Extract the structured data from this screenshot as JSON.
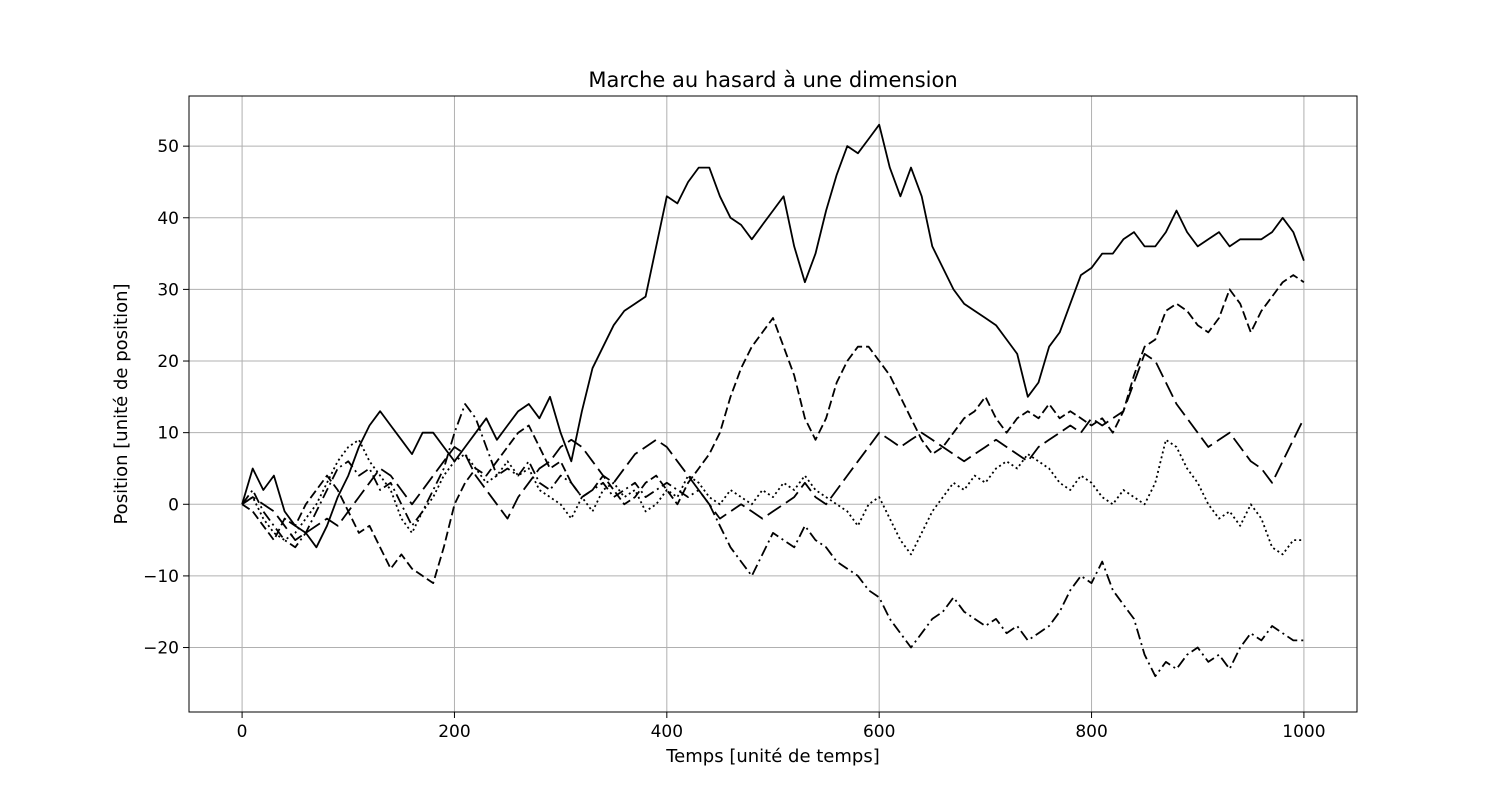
{
  "chart_data": {
    "type": "line",
    "title": "Marche au hasard à une dimension",
    "xlabel": "Temps [unité de temps]",
    "ylabel": "Position [unité de position]",
    "xlim": [
      -50,
      1050
    ],
    "ylim": [
      -29.0,
      57.0
    ],
    "xticks": [
      0,
      200,
      400,
      600,
      800,
      1000
    ],
    "yticks": [
      -20,
      -10,
      0,
      10,
      20,
      30,
      40,
      50
    ],
    "grid": true,
    "line_color": "#000000",
    "grid_color": "#b0b0b0",
    "series": [
      {
        "style": "solid",
        "x": [
          0,
          10,
          20,
          30,
          40,
          50,
          60,
          70,
          80,
          90,
          100,
          110,
          120,
          130,
          140,
          150,
          160,
          170,
          180,
          190,
          200,
          210,
          220,
          230,
          240,
          250,
          260,
          270,
          280,
          290,
          300,
          310,
          320,
          330,
          340,
          350,
          360,
          370,
          380,
          390,
          400,
          410,
          420,
          430,
          440,
          450,
          460,
          470,
          480,
          490,
          500,
          510,
          520,
          530,
          540,
          550,
          560,
          570,
          580,
          590,
          600,
          610,
          620,
          630,
          640,
          650,
          660,
          670,
          680,
          690,
          700,
          710,
          720,
          730,
          740,
          750,
          760,
          770,
          780,
          790,
          800,
          810,
          820,
          830,
          840,
          850,
          860,
          870,
          880,
          890,
          900,
          910,
          920,
          930,
          940,
          950,
          960,
          970,
          980,
          990,
          1000
        ],
        "y": [
          0,
          5,
          2,
          4,
          -1,
          -3,
          -4,
          -6,
          -3,
          1,
          4,
          8,
          11,
          13,
          11,
          9,
          7,
          10,
          10,
          8,
          6,
          8,
          10,
          12,
          9,
          11,
          13,
          14,
          12,
          15,
          10,
          6,
          13,
          19,
          22,
          25,
          27,
          28,
          29,
          36,
          43,
          42,
          45,
          47,
          47,
          43,
          40,
          39,
          37,
          39,
          41,
          43,
          36,
          31,
          35,
          41,
          46,
          50,
          49,
          51,
          53,
          47,
          43,
          47,
          43,
          36,
          33,
          30,
          28,
          27,
          26,
          25,
          23,
          21,
          15,
          17,
          22,
          24,
          28,
          32,
          33,
          35,
          35,
          37,
          38,
          36,
          36,
          38,
          41,
          38,
          36,
          37,
          38,
          36,
          37,
          37,
          37,
          38,
          40,
          38,
          34
        ]
      },
      {
        "style": "dashed",
        "x": [
          0,
          10,
          20,
          30,
          40,
          50,
          60,
          70,
          80,
          90,
          100,
          110,
          120,
          130,
          140,
          150,
          160,
          170,
          180,
          190,
          200,
          210,
          220,
          230,
          240,
          250,
          260,
          270,
          280,
          290,
          300,
          310,
          320,
          330,
          340,
          350,
          360,
          370,
          380,
          390,
          400,
          410,
          420,
          430,
          440,
          450,
          460,
          470,
          480,
          490,
          500,
          510,
          520,
          530,
          540,
          550,
          560,
          570,
          580,
          590,
          600,
          610,
          620,
          630,
          640,
          650,
          660,
          670,
          680,
          690,
          700,
          710,
          720,
          730,
          740,
          750,
          760,
          770,
          780,
          790,
          800,
          810,
          820,
          830,
          840,
          850,
          860,
          870,
          880,
          890,
          900,
          910,
          920,
          930,
          940,
          950,
          960,
          970,
          980,
          990,
          1000
        ],
        "y": [
          0,
          -1,
          -3,
          -5,
          -2,
          -3,
          0,
          2,
          4,
          2,
          -1,
          -4,
          -3,
          -6,
          -9,
          -7,
          -9,
          -10,
          -11,
          -6,
          0,
          3,
          5,
          4,
          6,
          8,
          10,
          11,
          8,
          5,
          6,
          3,
          1,
          2,
          4,
          2,
          0,
          1,
          3,
          4,
          2,
          0,
          3,
          5,
          7,
          10,
          15,
          19,
          22,
          24,
          26,
          22,
          18,
          12,
          9,
          12,
          17,
          20,
          22,
          22,
          20,
          18,
          15,
          12,
          9,
          7,
          8,
          10,
          12,
          13,
          15,
          12,
          10,
          12,
          13,
          12,
          14,
          12,
          13,
          12,
          11,
          12,
          10,
          13,
          18,
          22,
          23,
          27,
          28,
          27,
          25,
          24,
          26,
          30,
          28,
          24,
          27,
          29,
          31,
          32,
          31
        ]
      },
      {
        "style": "dashdot",
        "x": [
          0,
          10,
          20,
          30,
          40,
          50,
          60,
          70,
          80,
          90,
          100,
          110,
          120,
          130,
          140,
          150,
          160,
          170,
          180,
          190,
          200,
          210,
          220,
          230,
          240,
          250,
          260,
          270,
          280,
          290,
          300,
          310,
          320,
          330,
          340,
          350,
          360,
          370,
          380,
          390,
          400,
          410,
          420,
          430,
          440,
          450,
          460,
          470,
          480,
          490,
          500,
          510,
          520,
          530,
          540,
          550,
          560,
          570,
          580,
          590,
          600,
          610,
          620,
          630,
          640,
          650,
          660,
          670,
          680,
          690,
          700,
          710,
          720,
          730,
          740,
          750,
          760,
          770,
          780,
          790,
          800,
          810,
          820,
          830,
          840,
          850,
          860,
          870,
          880,
          890,
          900,
          910,
          920,
          930,
          940,
          950,
          960,
          970,
          980,
          990,
          1000
        ],
        "y": [
          0,
          2,
          -1,
          -3,
          -5,
          -6,
          -4,
          -1,
          2,
          5,
          6,
          4,
          5,
          2,
          3,
          0,
          -3,
          -1,
          2,
          5,
          10,
          14,
          12,
          8,
          4,
          5,
          4,
          6,
          3,
          2,
          4,
          3,
          1,
          2,
          3,
          1,
          2,
          3,
          1,
          2,
          3,
          2,
          1,
          2,
          0,
          -3,
          -6,
          -8,
          -10,
          -7,
          -4,
          -5,
          -6,
          -3,
          -5,
          -6,
          -8,
          -9,
          -10,
          -12,
          -13,
          -16,
          -18,
          -20,
          -18,
          -16,
          -15,
          -13,
          -15,
          -16,
          -17,
          -16,
          -18,
          -17,
          -19,
          -18,
          -17,
          -15,
          -12,
          -10,
          -11,
          -8,
          -12,
          -14,
          -16,
          -21,
          -24,
          -22,
          -23,
          -21,
          -20,
          -22,
          -21,
          -23,
          -20,
          -18,
          -19,
          -17,
          -18,
          -19,
          -19
        ]
      },
      {
        "style": "dotted",
        "x": [
          0,
          10,
          20,
          30,
          40,
          50,
          60,
          70,
          80,
          90,
          100,
          110,
          120,
          130,
          140,
          150,
          160,
          170,
          180,
          190,
          200,
          210,
          220,
          230,
          240,
          250,
          260,
          270,
          280,
          290,
          300,
          310,
          320,
          330,
          340,
          350,
          360,
          370,
          380,
          390,
          400,
          410,
          420,
          430,
          440,
          450,
          460,
          470,
          480,
          490,
          500,
          510,
          520,
          530,
          540,
          550,
          560,
          570,
          580,
          590,
          600,
          610,
          620,
          630,
          640,
          650,
          660,
          670,
          680,
          690,
          700,
          710,
          720,
          730,
          740,
          750,
          760,
          770,
          780,
          790,
          800,
          810,
          820,
          830,
          840,
          850,
          860,
          870,
          880,
          890,
          900,
          910,
          920,
          930,
          940,
          950,
          960,
          970,
          980,
          990,
          1000
        ],
        "y": [
          0,
          1,
          -2,
          -4,
          -5,
          -4,
          -2,
          0,
          3,
          6,
          8,
          9,
          6,
          4,
          2,
          -2,
          -4,
          -1,
          1,
          4,
          6,
          7,
          5,
          3,
          4,
          6,
          4,
          5,
          2,
          1,
          0,
          -2,
          1,
          -1,
          2,
          3,
          1,
          2,
          -1,
          0,
          2,
          1,
          4,
          3,
          1,
          0,
          2,
          1,
          0,
          2,
          1,
          3,
          2,
          4,
          2,
          1,
          0,
          -1,
          -3,
          0,
          1,
          -2,
          -5,
          -7,
          -4,
          -1,
          1,
          3,
          2,
          4,
          3,
          5,
          6,
          5,
          7,
          6,
          5,
          3,
          2,
          4,
          3,
          1,
          0,
          2,
          1,
          0,
          3,
          9,
          8,
          5,
          3,
          0,
          -2,
          -1,
          -3,
          0,
          -2,
          -6,
          -7,
          -5,
          -5
        ]
      },
      {
        "style": "longdash",
        "x": [
          0,
          10,
          20,
          30,
          40,
          50,
          60,
          70,
          80,
          90,
          100,
          110,
          120,
          130,
          140,
          150,
          160,
          170,
          180,
          190,
          200,
          210,
          220,
          230,
          240,
          250,
          260,
          270,
          280,
          290,
          300,
          310,
          320,
          330,
          340,
          350,
          360,
          370,
          380,
          390,
          400,
          410,
          420,
          430,
          440,
          450,
          460,
          470,
          480,
          490,
          500,
          510,
          520,
          530,
          540,
          550,
          560,
          570,
          580,
          590,
          600,
          610,
          620,
          630,
          640,
          650,
          660,
          670,
          680,
          690,
          700,
          710,
          720,
          730,
          740,
          750,
          760,
          770,
          780,
          790,
          800,
          810,
          820,
          830,
          840,
          850,
          860,
          870,
          880,
          890,
          900,
          910,
          920,
          930,
          940,
          950,
          960,
          970,
          980,
          990,
          1000
        ],
        "y": [
          0,
          1,
          0,
          -1,
          -3,
          -5,
          -4,
          -3,
          -2,
          -3,
          -1,
          1,
          3,
          5,
          4,
          2,
          0,
          2,
          4,
          6,
          8,
          7,
          4,
          2,
          0,
          -2,
          1,
          3,
          5,
          6,
          8,
          9,
          8,
          6,
          4,
          3,
          5,
          7,
          8,
          9,
          8,
          6,
          4,
          2,
          0,
          -2,
          -1,
          0,
          -1,
          -2,
          -1,
          0,
          1,
          3,
          1,
          0,
          2,
          4,
          6,
          8,
          10,
          9,
          8,
          9,
          10,
          9,
          8,
          7,
          6,
          7,
          8,
          9,
          8,
          7,
          6,
          8,
          9,
          10,
          11,
          10,
          12,
          11,
          12,
          13,
          17,
          21,
          20,
          17,
          14,
          12,
          10,
          8,
          9,
          10,
          8,
          6,
          5,
          3,
          6,
          9,
          12
        ]
      }
    ]
  }
}
